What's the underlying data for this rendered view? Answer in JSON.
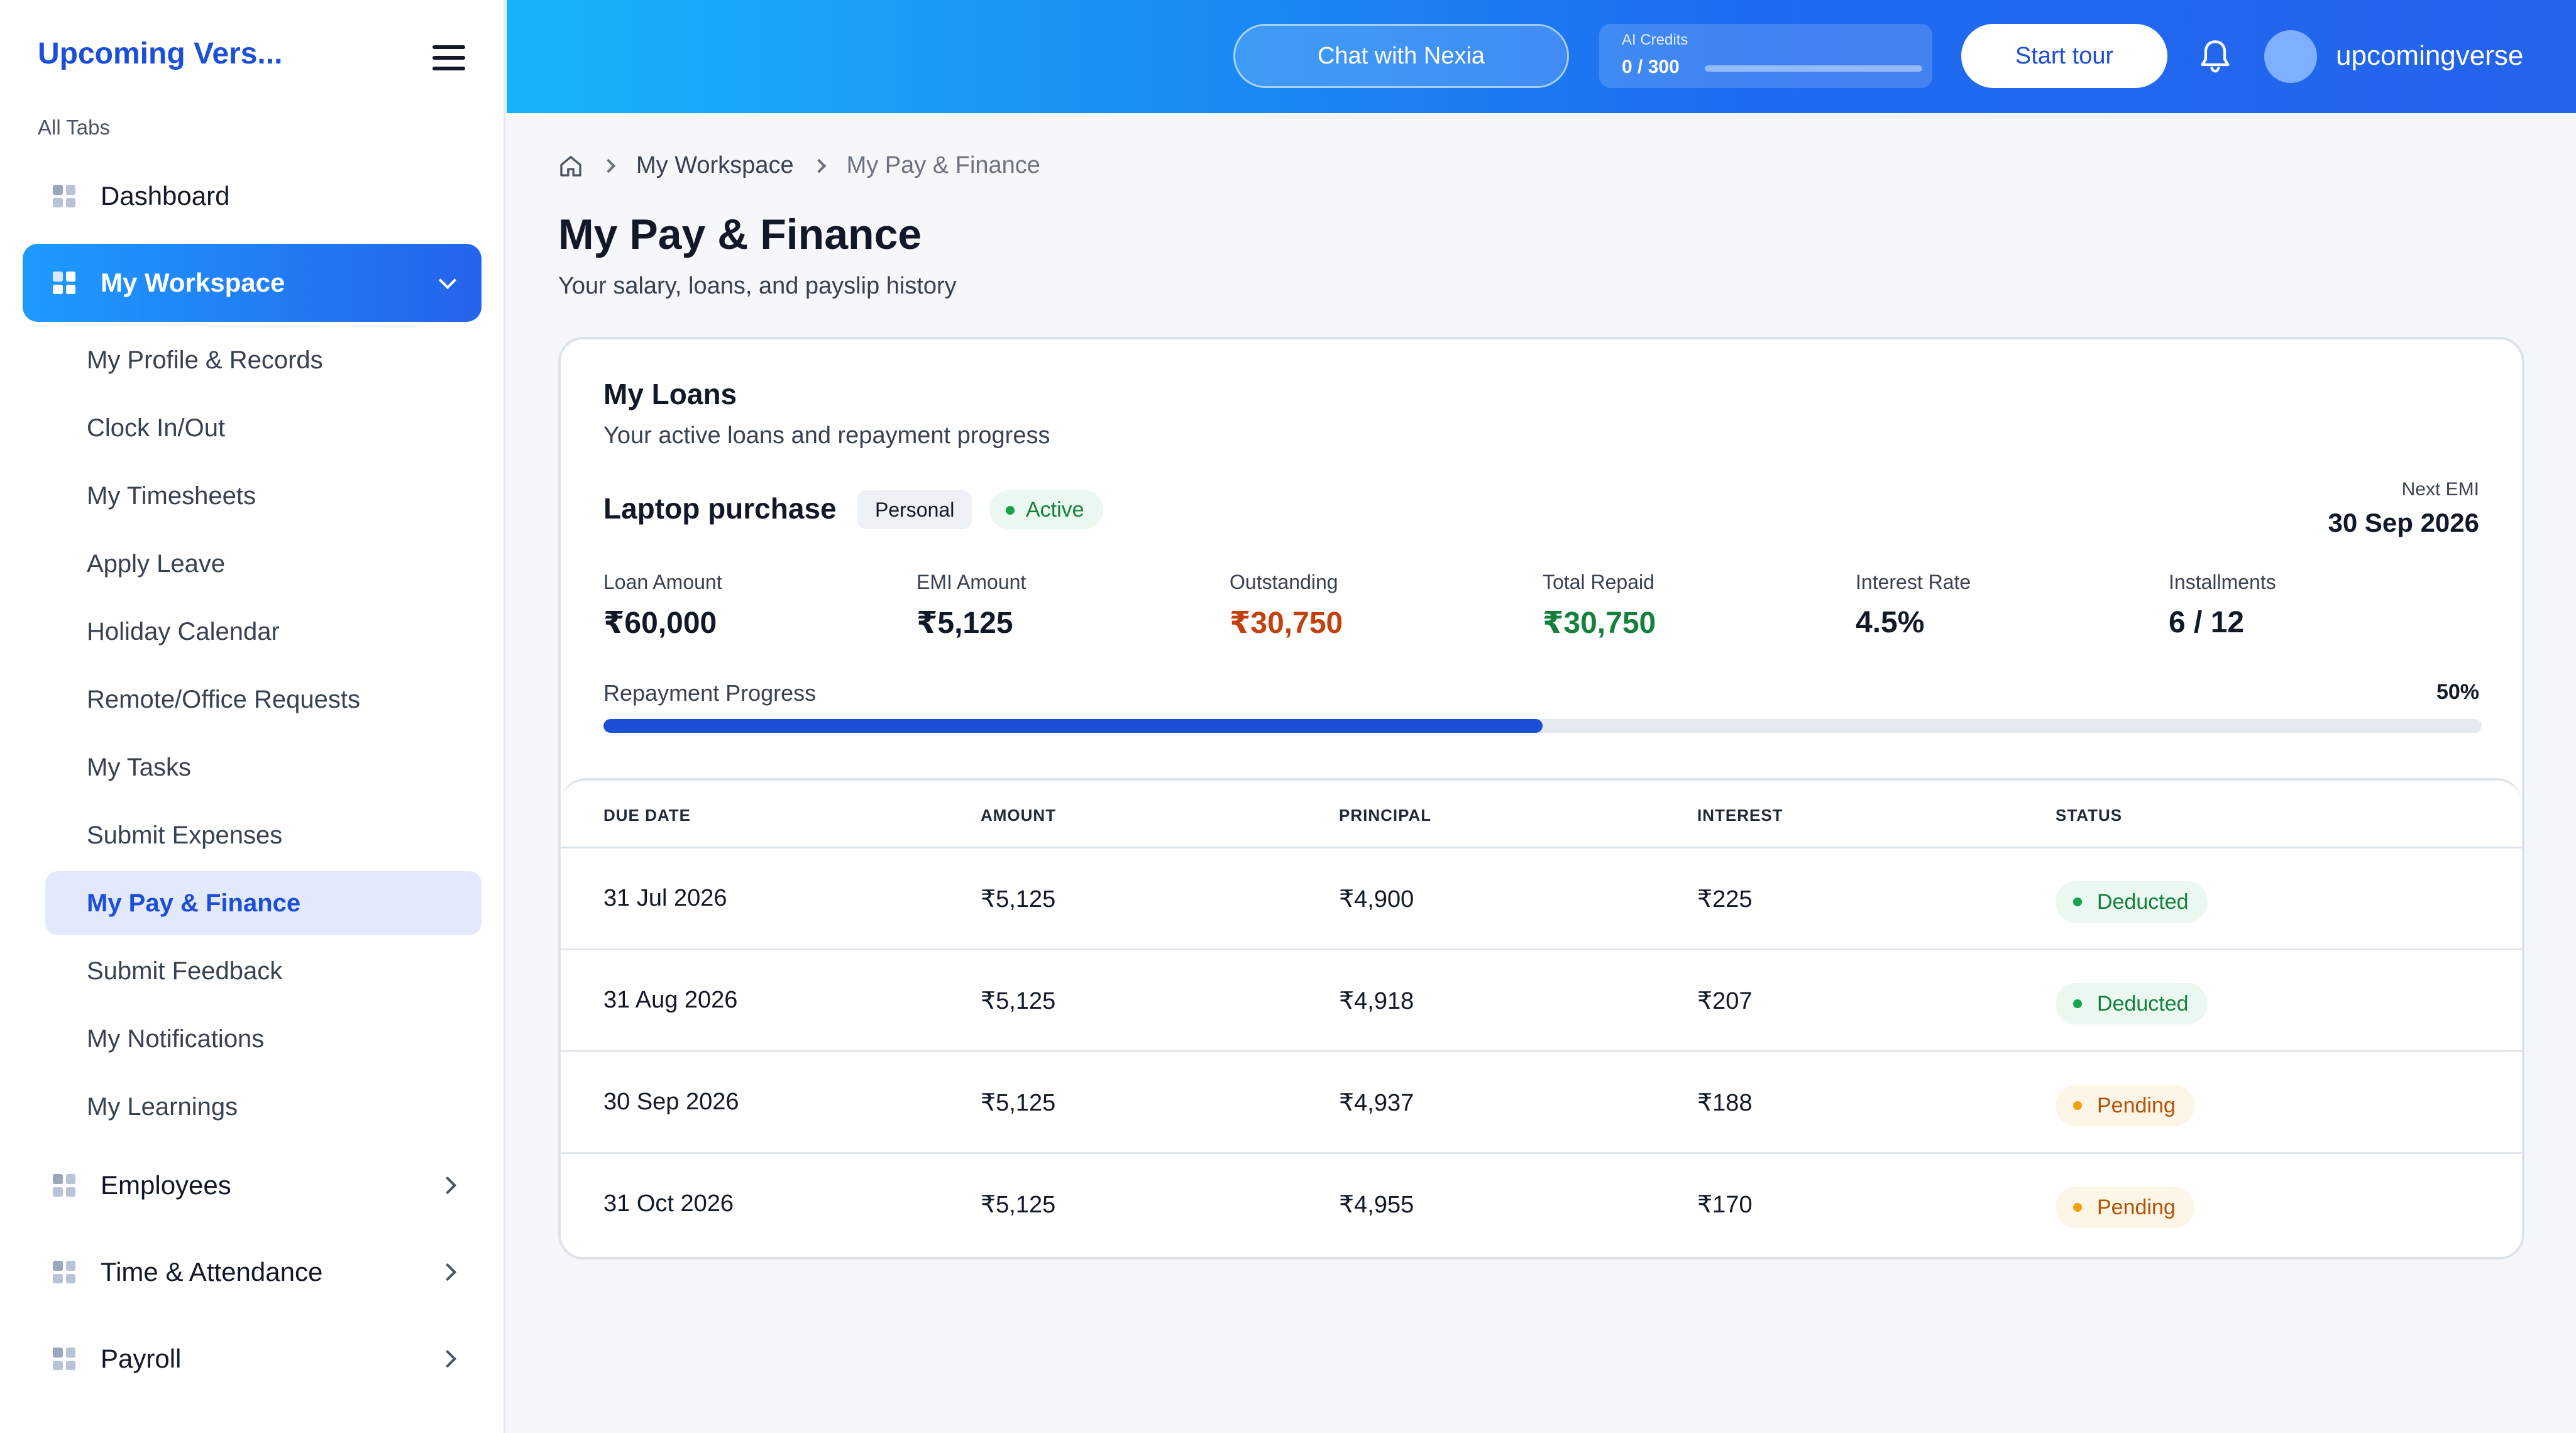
{
  "sidebar": {
    "brand": "Upcoming Vers...",
    "section_label": "All Tabs",
    "dashboard": "Dashboard",
    "workspace": "My Workspace",
    "workspace_items": [
      "My Profile & Records",
      "Clock In/Out",
      "My Timesheets",
      "Apply Leave",
      "Holiday Calendar",
      "Remote/Office Requests",
      "My Tasks",
      "Submit Expenses",
      "My Pay & Finance",
      "Submit Feedback",
      "My Notifications",
      "My Learnings"
    ],
    "current_item": "My Pay & Finance",
    "groups": [
      "Employees",
      "Time & Attendance",
      "Payroll"
    ]
  },
  "topbar": {
    "chat_label": "Chat with Nexia",
    "credits_caption": "AI Credits",
    "credits_value": "0 / 300",
    "credits_used_fraction": 0,
    "tour_label": "Start tour",
    "username": "upcomingverse"
  },
  "breadcrumb": [
    "My Workspace",
    "My Pay & Finance"
  ],
  "page": {
    "title": "My Pay & Finance",
    "subtitle": "Your salary, loans, and payslip history"
  },
  "loans": {
    "title": "My Loans",
    "subtitle": "Your active loans and repayment progress",
    "loan": {
      "name": "Laptop purchase",
      "type_tag": "Personal",
      "status_tag": "Active",
      "next_emi_caption": "Next EMI",
      "next_emi_date": "30 Sep 2026",
      "stats": [
        {
          "caption": "Loan Amount",
          "value": "₹60,000"
        },
        {
          "caption": "EMI Amount",
          "value": "₹5,125"
        },
        {
          "caption": "Outstanding",
          "value": "₹30,750"
        },
        {
          "caption": "Total Repaid",
          "value": "₹30,750"
        },
        {
          "caption": "Interest Rate",
          "value": "4.5%"
        },
        {
          "caption": "Installments",
          "value": "6 / 12"
        }
      ],
      "progress_caption": "Repayment Progress",
      "progress_label": "50%",
      "progress_percent": 50
    },
    "table": {
      "headers": [
        "DUE DATE",
        "AMOUNT",
        "PRINCIPAL",
        "INTEREST",
        "STATUS"
      ],
      "rows": [
        {
          "due_date": "31 Jul 2026",
          "amount": "₹5,125",
          "principal": "₹4,900",
          "interest": "₹225",
          "status": "Deducted"
        },
        {
          "due_date": "31 Aug 2026",
          "amount": "₹5,125",
          "principal": "₹4,918",
          "interest": "₹207",
          "status": "Deducted"
        },
        {
          "due_date": "30 Sep 2026",
          "amount": "₹5,125",
          "principal": "₹4,937",
          "interest": "₹188",
          "status": "Pending"
        },
        {
          "due_date": "31 Oct 2026",
          "amount": "₹5,125",
          "principal": "₹4,955",
          "interest": "₹170",
          "status": "Pending"
        }
      ]
    }
  },
  "colors": {
    "accent": "#2563eb",
    "deducted": "#15803d",
    "pending": "#b45309",
    "outstanding": "#c2410c"
  },
  "icons": {
    "menu": "hamburger-icon",
    "nav": "grid-icon",
    "bell": "bell-icon",
    "home": "home-icon"
  }
}
